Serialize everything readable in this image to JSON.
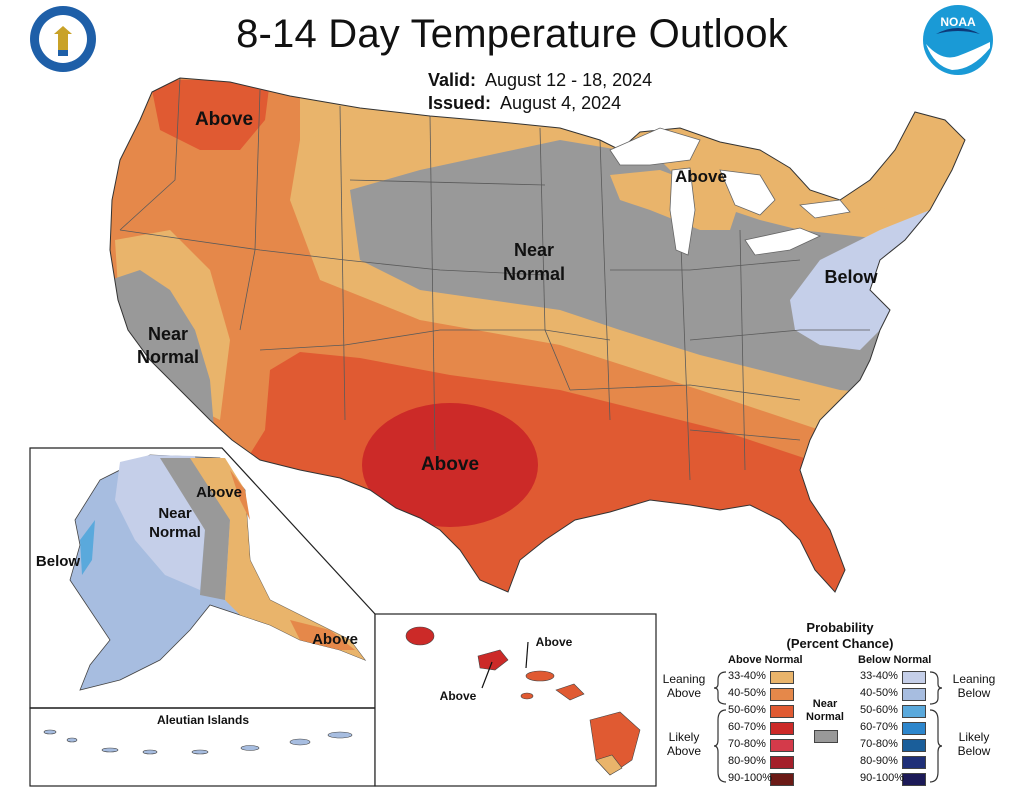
{
  "header": {
    "title": "8-14 Day Temperature Outlook",
    "valid_label": "Valid:",
    "valid_value": "August 12 - 18, 2024",
    "issued_label": "Issued:",
    "issued_value": "August 4, 2024"
  },
  "logos": {
    "left": "department-of-commerce-seal",
    "right": "noaa-logo",
    "right_text": "NOAA"
  },
  "map_labels": {
    "nw_above": "Above",
    "great_lakes_above": "Above",
    "central_near": [
      "Near",
      "Normal"
    ],
    "ca_near": [
      "Near",
      "Normal"
    ],
    "ne_below": "Below",
    "tx_above": "Above",
    "ak_above_n": "Above",
    "ak_near": [
      "Near",
      "Normal"
    ],
    "ak_below": "Below",
    "ak_above_se": "Above",
    "aleutian": "Aleutian Islands",
    "hi_above_1": "Above",
    "hi_above_2": "Above"
  },
  "legend": {
    "title": [
      "Probability",
      "(Percent Chance)"
    ],
    "above_head": "Above Normal",
    "below_head": "Below Normal",
    "near_label": [
      "Near",
      "Normal"
    ],
    "leaning_above": [
      "Leaning",
      "Above"
    ],
    "likely_above": [
      "Likely",
      "Above"
    ],
    "leaning_below": [
      "Leaning",
      "Below"
    ],
    "likely_below": [
      "Likely",
      "Below"
    ],
    "above": [
      {
        "range": "33-40%",
        "color": "#e9b46b"
      },
      {
        "range": "40-50%",
        "color": "#e5884a"
      },
      {
        "range": "50-60%",
        "color": "#e05a32"
      },
      {
        "range": "60-70%",
        "color": "#cc2a28"
      },
      {
        "range": "70-80%",
        "color": "#d43a4a"
      },
      {
        "range": "80-90%",
        "color": "#a41f2a"
      },
      {
        "range": "90-100%",
        "color": "#6b1a16"
      }
    ],
    "below": [
      {
        "range": "33-40%",
        "color": "#c5cfe9"
      },
      {
        "range": "40-50%",
        "color": "#a7bde0"
      },
      {
        "range": "50-60%",
        "color": "#5aa9dc"
      },
      {
        "range": "60-70%",
        "color": "#2d86cc"
      },
      {
        "range": "70-80%",
        "color": "#1a5e9a"
      },
      {
        "range": "80-90%",
        "color": "#1f2f78"
      },
      {
        "range": "90-100%",
        "color": "#1c1a58"
      }
    ],
    "near_color": "#999999"
  }
}
